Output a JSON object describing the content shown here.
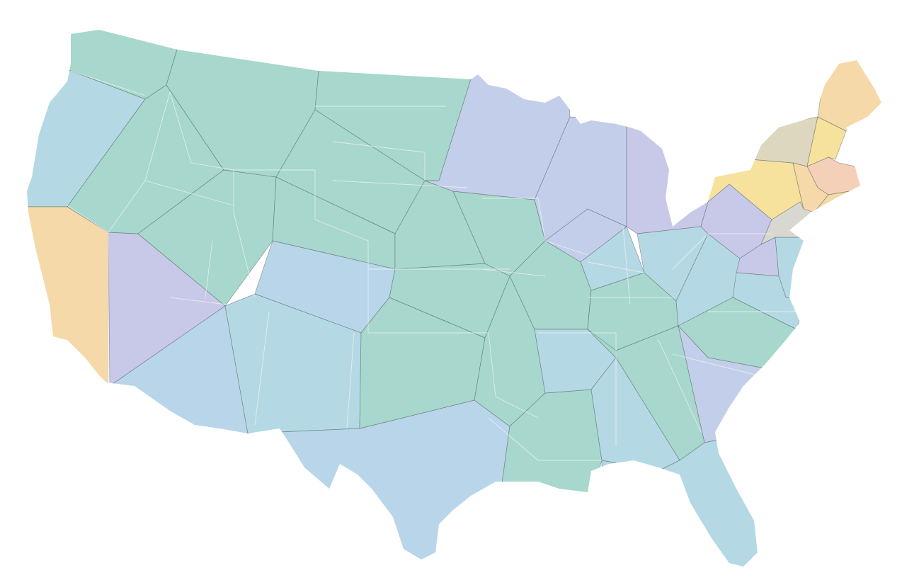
{
  "map": {
    "palette": {
      "green": "#a7d7cd",
      "light-blue": "#b4d9e4",
      "blue": "#b8d5ea",
      "periwinkle": "#c3cfea",
      "lavender": "#c8c8e8",
      "orange": "#f5d9a8",
      "yellow": "#f6e29d",
      "beige": "#ddd7bf",
      "gray": "#d8d8d0",
      "peach": "#f5d0b8"
    },
    "cells": [
      {
        "id": "wa",
        "color": "green"
      },
      {
        "id": "or",
        "color": "light-blue"
      },
      {
        "id": "ca",
        "color": "orange"
      },
      {
        "id": "nv",
        "color": "lavender"
      },
      {
        "id": "id-n",
        "color": "green"
      },
      {
        "id": "id-s",
        "color": "green"
      },
      {
        "id": "mt",
        "color": "green"
      },
      {
        "id": "nd",
        "color": "green"
      },
      {
        "id": "sd",
        "color": "green"
      },
      {
        "id": "wy",
        "color": "green"
      },
      {
        "id": "wy-e",
        "color": "green"
      },
      {
        "id": "ut",
        "color": "green"
      },
      {
        "id": "co",
        "color": "blue"
      },
      {
        "id": "az",
        "color": "blue"
      },
      {
        "id": "nm",
        "color": "light-blue"
      },
      {
        "id": "tx-w",
        "color": "light-blue"
      },
      {
        "id": "tx",
        "color": "blue"
      },
      {
        "id": "ok",
        "color": "green"
      },
      {
        "id": "ks",
        "color": "green"
      },
      {
        "id": "ne",
        "color": "green"
      },
      {
        "id": "ia",
        "color": "green"
      },
      {
        "id": "mn",
        "color": "periwinkle"
      },
      {
        "id": "wi",
        "color": "periwinkle"
      },
      {
        "id": "il",
        "color": "periwinkle"
      },
      {
        "id": "mo",
        "color": "green"
      },
      {
        "id": "ar",
        "color": "green"
      },
      {
        "id": "la",
        "color": "green"
      },
      {
        "id": "ms",
        "color": "light-blue"
      },
      {
        "id": "tn",
        "color": "green"
      },
      {
        "id": "ky",
        "color": "green"
      },
      {
        "id": "in",
        "color": "light-blue"
      },
      {
        "id": "oh",
        "color": "light-blue"
      },
      {
        "id": "mi",
        "color": "lavender"
      },
      {
        "id": "al",
        "color": "light-blue"
      },
      {
        "id": "ga",
        "color": "green"
      },
      {
        "id": "fl",
        "color": "light-blue"
      },
      {
        "id": "sc",
        "color": "periwinkle"
      },
      {
        "id": "nc",
        "color": "green"
      },
      {
        "id": "va",
        "color": "light-blue"
      },
      {
        "id": "wv",
        "color": "light-blue"
      },
      {
        "id": "pa",
        "color": "lavender"
      },
      {
        "id": "md",
        "color": "lavender"
      },
      {
        "id": "de",
        "color": "light-blue"
      },
      {
        "id": "nj",
        "color": "gray"
      },
      {
        "id": "ny",
        "color": "yellow"
      },
      {
        "id": "vt",
        "color": "beige"
      },
      {
        "id": "nh",
        "color": "yellow"
      },
      {
        "id": "me",
        "color": "orange"
      },
      {
        "id": "ma",
        "color": "peach"
      },
      {
        "id": "ct",
        "color": "orange"
      },
      {
        "id": "ri",
        "color": "orange"
      }
    ]
  }
}
